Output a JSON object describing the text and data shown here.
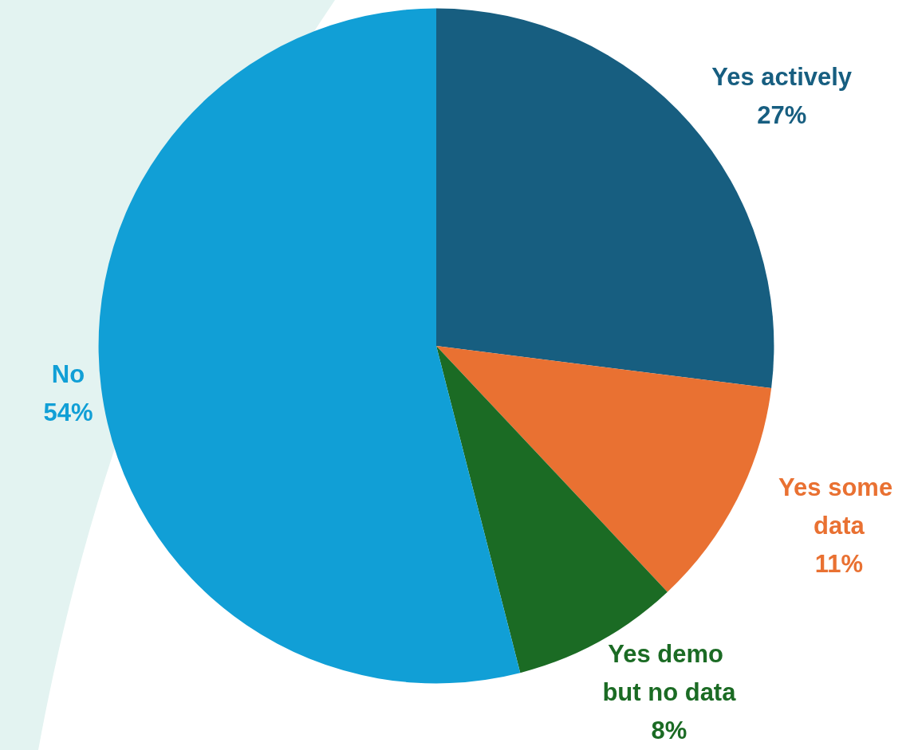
{
  "chart_data": {
    "type": "pie",
    "categories": [
      "Yes actively",
      "Yes some data",
      "Yes demo but no data",
      "No"
    ],
    "values": [
      27,
      11,
      8,
      54
    ],
    "colors": [
      "#175e80",
      "#e97132",
      "#1b6b24",
      "#119fd6"
    ],
    "value_labels": [
      "27%",
      "11%",
      "8%",
      "54%"
    ],
    "legend": false
  }
}
